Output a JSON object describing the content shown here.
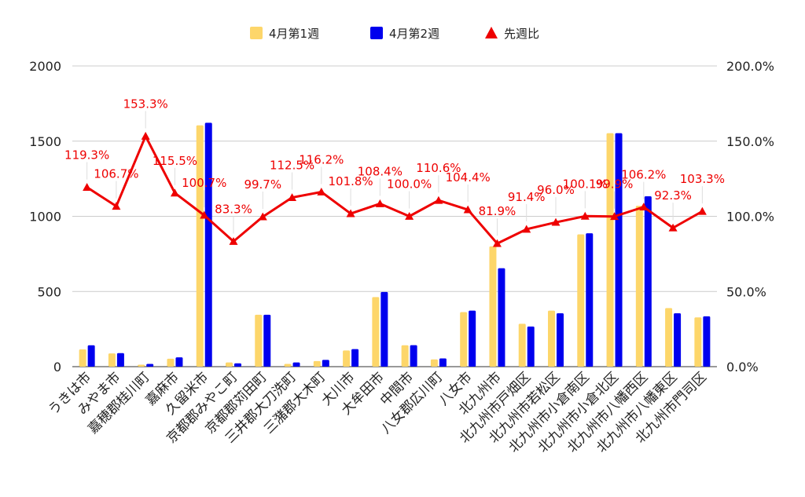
{
  "chart_data": {
    "type": "bar",
    "title": "",
    "xlabel": "",
    "ylabel": "",
    "ylim": [
      0,
      2000
    ],
    "y2lim": [
      0,
      2.0
    ],
    "yticks": [
      "0",
      "500",
      "1000",
      "1500",
      "2000"
    ],
    "y2ticks": [
      "0.0%",
      "50.0%",
      "100.0%",
      "150.0%",
      "200.0%"
    ],
    "grid": true,
    "legend_position": "top",
    "categories": [
      "うきは市",
      "みやま市",
      "嘉穂郡桂川町",
      "嘉麻市",
      "久留米市",
      "京都郡みやこ町",
      "京都郡苅田町",
      "三井郡大刀洗町",
      "三潴郡大木町",
      "大川市",
      "大牟田市",
      "中間市",
      "八女郡広川町",
      "八女市",
      "北九州市",
      "北九州市戸畑区",
      "北九州市若松区",
      "北九州市小倉南区",
      "北九州市小倉北区",
      "北九州市八幡西区",
      "北九州市八幡東区",
      "北九州市門司区"
    ],
    "series": [
      {
        "name": "4月第1週",
        "type": "bar",
        "axis": "left",
        "color": "#fdd66a",
        "values": [
          115,
          88,
          13,
          53,
          1605,
          28,
          345,
          18,
          37,
          108,
          463,
          142,
          48,
          363,
          800,
          285,
          373,
          880,
          1553,
          1070,
          390,
          328
        ]
      },
      {
        "name": "4月第2週",
        "type": "bar",
        "axis": "left",
        "color": "#0000ee",
        "values": [
          142,
          90,
          18,
          62,
          1622,
          22,
          345,
          28,
          45,
          117,
          497,
          143,
          55,
          373,
          655,
          267,
          355,
          887,
          1553,
          1133,
          355,
          335
        ]
      },
      {
        "name": "先週比",
        "type": "line",
        "axis": "right",
        "color": "#ee0000",
        "marker": "triangle",
        "values": [
          1.193,
          1.067,
          1.533,
          1.155,
          1.007,
          0.833,
          0.997,
          1.125,
          1.162,
          1.018,
          1.084,
          1.0,
          1.106,
          1.044,
          0.819,
          0.914,
          0.96,
          1.001,
          0.999,
          1.062,
          0.923,
          1.033
        ],
        "labels": [
          "119.3%",
          "106.7%",
          "153.3%",
          "115.5%",
          "100.7%",
          "83.3%",
          "99.7%",
          "112.5%",
          "116.2%",
          "101.8%",
          "108.4%",
          "100.0%",
          "110.6%",
          "104.4%",
          "81.9%",
          "91.4%",
          "96.0%",
          "100.1%",
          "99.9%",
          "106.2%",
          "92.3%",
          "103.3%"
        ]
      }
    ]
  }
}
